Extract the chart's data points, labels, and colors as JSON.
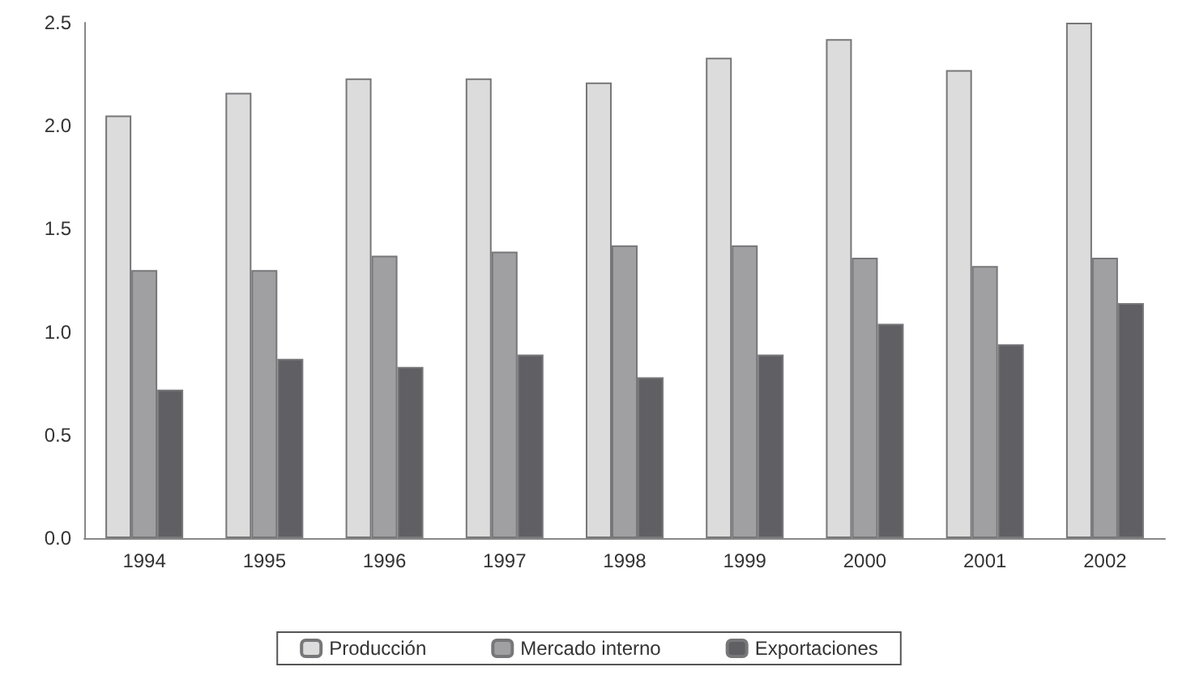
{
  "chart_data": {
    "type": "bar",
    "categories": [
      "1994",
      "1995",
      "1996",
      "1997",
      "1998",
      "1999",
      "2000",
      "2001",
      "2002"
    ],
    "series": [
      {
        "name": "Producción",
        "color": "#dcdcdc",
        "values": [
          2.05,
          2.16,
          2.23,
          2.23,
          2.21,
          2.33,
          2.42,
          2.27,
          2.5
        ]
      },
      {
        "name": "Mercado interno",
        "color": "#a0a0a2",
        "values": [
          1.3,
          1.3,
          1.37,
          1.39,
          1.42,
          1.42,
          1.36,
          1.32,
          1.36
        ]
      },
      {
        "name": "Exportaciones",
        "color": "#606064",
        "values": [
          0.72,
          0.87,
          0.83,
          0.89,
          0.78,
          0.89,
          1.04,
          0.94,
          1.14
        ]
      }
    ],
    "ylim": [
      0,
      2.5
    ],
    "yticks": [
      {
        "value": 0,
        "label": "0.0"
      },
      {
        "value": 0.5,
        "label": "0.5"
      },
      {
        "value": 1,
        "label": "1.0"
      },
      {
        "value": 1.5,
        "label": "1.5"
      },
      {
        "value": 2,
        "label": "2.0"
      },
      {
        "value": 2.5,
        "label": "2.5"
      }
    ],
    "grid": false,
    "legend": "bottom"
  }
}
